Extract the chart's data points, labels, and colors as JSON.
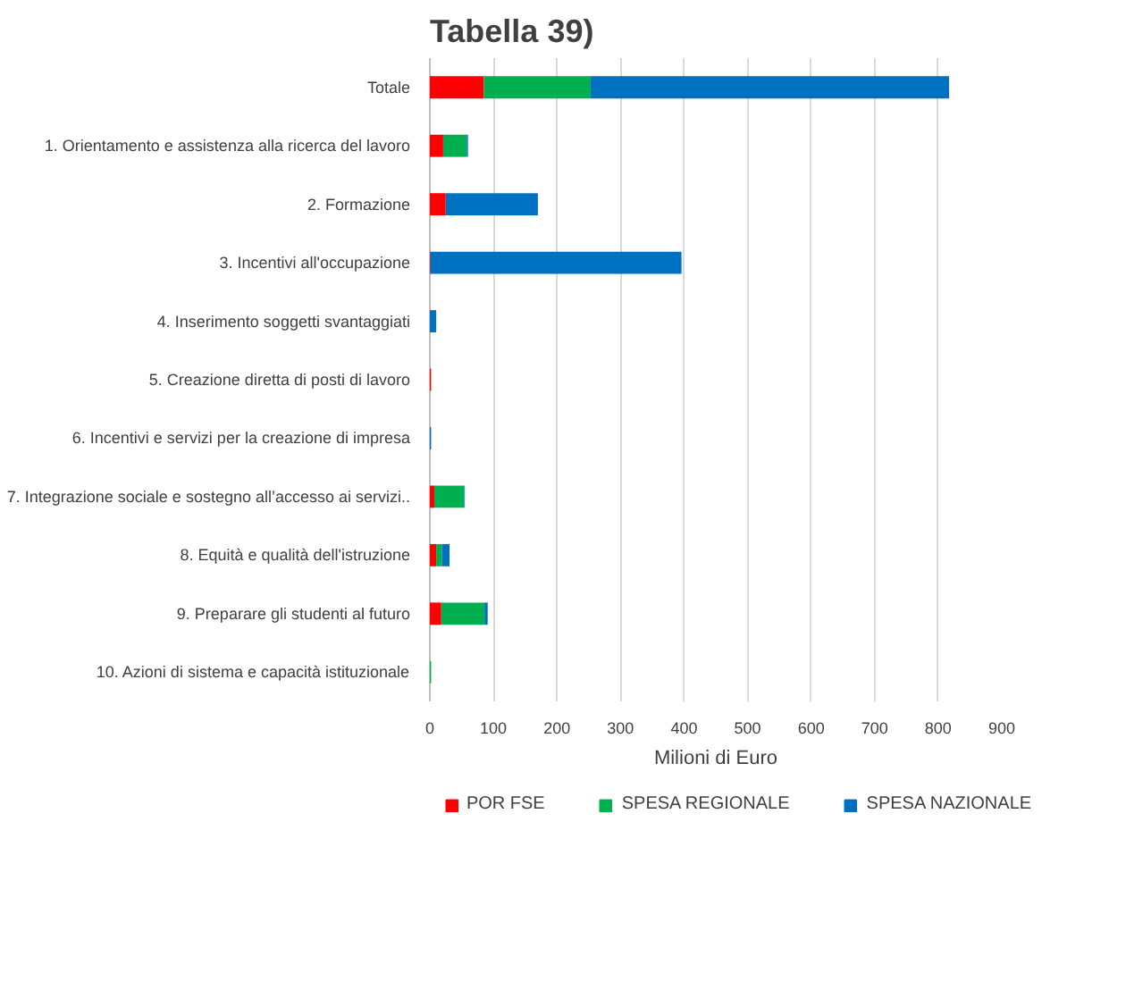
{
  "chart_data": {
    "type": "bar",
    "orientation": "horizontal",
    "stacked": true,
    "title": "Tabella 39)",
    "xlabel": "Milioni di Euro",
    "categories": [
      "Totale",
      "1. Orientamento e assistenza alla ricerca del lavoro",
      "2. Formazione",
      "3. Incentivi all'occupazione",
      "4. Inserimento soggetti svantaggiati",
      "5. Creazione diretta di posti di lavoro",
      "6. Incentivi e servizi per la creazione di impresa",
      "7. Integrazione sociale e sostegno all’accesso ai servizi..",
      "8. Equità e qualità dell'istruzione",
      "9. Preparare gli studenti al futuro",
      "10. Azioni di sistema e capacità istituzionale"
    ],
    "series": [
      {
        "name": "POR FSE",
        "color": "#ff0000",
        "values": [
          85,
          21,
          25,
          1,
          0,
          2,
          0,
          7,
          10,
          18,
          0
        ]
      },
      {
        "name": "SPESA REGIONALE",
        "color": "#00b050",
        "values": [
          168,
          37,
          0,
          0,
          0,
          0,
          0,
          47,
          9,
          68,
          2
        ]
      },
      {
        "name": "SPESA NAZIONALE",
        "color": "#0070c0",
        "values": [
          564,
          2,
          145,
          395,
          10,
          0,
          2,
          1,
          12,
          5,
          0
        ]
      }
    ],
    "xlim": [
      0,
      900
    ],
    "xticks": [
      0,
      100,
      200,
      300,
      400,
      500,
      600,
      700,
      800,
      900
    ],
    "grid": "x",
    "legend": "bottom"
  }
}
